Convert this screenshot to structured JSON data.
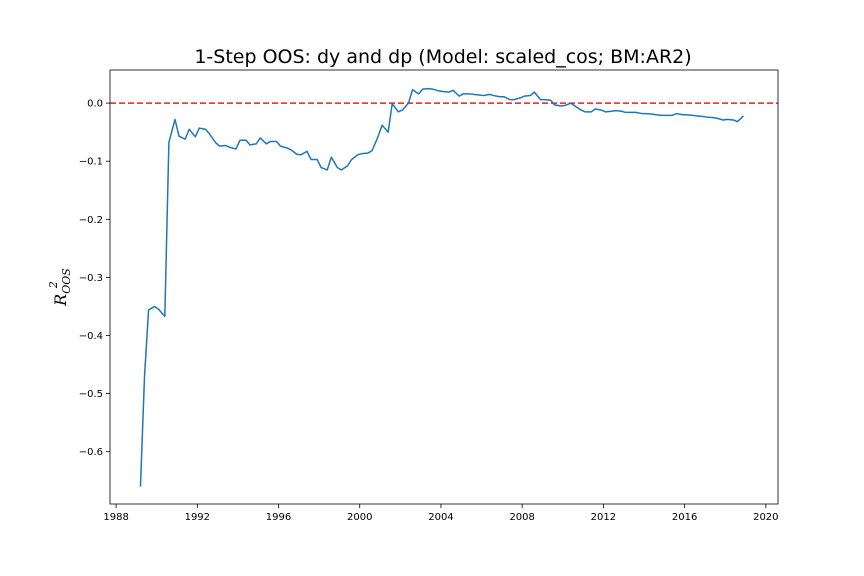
{
  "chart_data": {
    "type": "line",
    "title": "1-Step OOS: dy and dp (Model: scaled_cos; BM:AR2)",
    "xlabel": "",
    "ylabel": "R²_OOS",
    "ylabel_main": "R",
    "ylabel_sup": "2",
    "ylabel_sub": "OOS",
    "xlim": [
      1987.7,
      2020.6
    ],
    "ylim": [
      -0.69,
      0.057
    ],
    "x_ticks": [
      1988,
      1992,
      1996,
      2000,
      2004,
      2008,
      2012,
      2016,
      2020
    ],
    "x_tick_labels": [
      "1988",
      "1992",
      "1996",
      "2000",
      "2004",
      "2008",
      "2012",
      "2016",
      "2020"
    ],
    "y_ticks": [
      0.0,
      -0.1,
      -0.2,
      -0.3,
      -0.4,
      -0.5,
      -0.6
    ],
    "y_tick_labels": [
      "0.0",
      "−0.1",
      "−0.2",
      "−0.3",
      "−0.4",
      "−0.5",
      "−0.6"
    ],
    "reference_line": {
      "y": 0.0,
      "color": "#e8201a",
      "style": "dashed"
    },
    "line_color": "#1f77b4",
    "grid": false,
    "series": [
      {
        "x": [
          1989.2,
          1989.4,
          1989.6,
          1989.9,
          1990.1,
          1990.4,
          1990.6,
          1990.9,
          1991.1,
          1991.4,
          1991.6,
          1991.9,
          1992.1,
          1992.4,
          1992.6,
          1992.9,
          1993.1,
          1993.4,
          1993.6,
          1993.9,
          1994.1,
          1994.4,
          1994.6,
          1994.9,
          1995.1,
          1995.4,
          1995.6,
          1995.9,
          1996.1,
          1996.4,
          1996.6,
          1996.9,
          1997.1,
          1997.4,
          1997.6,
          1997.9,
          1998.1,
          1998.4,
          1998.6,
          1998.9,
          1999.1,
          1999.4,
          1999.6,
          1999.9,
          2000.1,
          2000.4,
          2000.6,
          2000.9,
          2001.1,
          2001.4,
          2001.6,
          2001.9,
          2002.1,
          2002.4,
          2002.6,
          2002.9,
          2003.1,
          2003.4,
          2003.6,
          2003.9,
          2004.1,
          2004.4,
          2004.6,
          2004.9,
          2005.1,
          2005.4,
          2005.6,
          2005.9,
          2006.1,
          2006.4,
          2006.6,
          2006.9,
          2007.1,
          2007.4,
          2007.6,
          2007.9,
          2008.1,
          2008.4,
          2008.6,
          2008.9,
          2009.1,
          2009.4,
          2009.6,
          2009.9,
          2010.1,
          2010.4,
          2010.6,
          2010.9,
          2011.1,
          2011.4,
          2011.6,
          2011.9,
          2012.1,
          2012.4,
          2012.6,
          2012.9,
          2013.1,
          2013.4,
          2013.6,
          2013.9,
          2014.1,
          2014.4,
          2014.6,
          2014.9,
          2015.1,
          2015.4,
          2015.6,
          2015.9,
          2016.1,
          2016.4,
          2016.6,
          2016.9,
          2017.1,
          2017.4,
          2017.6,
          2017.9,
          2018.1,
          2018.4,
          2018.6,
          2018.9
        ],
        "y": [
          -0.66,
          -0.47,
          -0.356,
          -0.35,
          -0.355,
          -0.367,
          -0.068,
          -0.028,
          -0.057,
          -0.062,
          -0.045,
          -0.058,
          -0.043,
          -0.045,
          -0.053,
          -0.068,
          -0.074,
          -0.073,
          -0.076,
          -0.079,
          -0.064,
          -0.064,
          -0.072,
          -0.07,
          -0.06,
          -0.07,
          -0.066,
          -0.066,
          -0.074,
          -0.077,
          -0.08,
          -0.088,
          -0.089,
          -0.083,
          -0.097,
          -0.097,
          -0.111,
          -0.115,
          -0.093,
          -0.111,
          -0.115,
          -0.108,
          -0.097,
          -0.089,
          -0.087,
          -0.086,
          -0.082,
          -0.058,
          -0.038,
          -0.05,
          -0.001,
          -0.015,
          -0.012,
          0.0,
          0.023,
          0.016,
          0.024,
          0.025,
          0.024,
          0.021,
          0.02,
          0.019,
          0.022,
          0.012,
          0.016,
          0.016,
          0.015,
          0.014,
          0.013,
          0.015,
          0.013,
          0.011,
          0.011,
          0.006,
          0.006,
          0.009,
          0.012,
          0.013,
          0.019,
          0.006,
          0.006,
          0.005,
          -0.003,
          -0.005,
          -0.004,
          0.0,
          -0.005,
          -0.012,
          -0.015,
          -0.015,
          -0.01,
          -0.012,
          -0.015,
          -0.014,
          -0.013,
          -0.014,
          -0.016,
          -0.016,
          -0.016,
          -0.018,
          -0.018,
          -0.019,
          -0.02,
          -0.021,
          -0.021,
          -0.021,
          -0.018,
          -0.02,
          -0.02,
          -0.021,
          -0.022,
          -0.023,
          -0.024,
          -0.025,
          -0.026,
          -0.029,
          -0.028,
          -0.029,
          -0.032,
          -0.022
        ]
      }
    ]
  }
}
